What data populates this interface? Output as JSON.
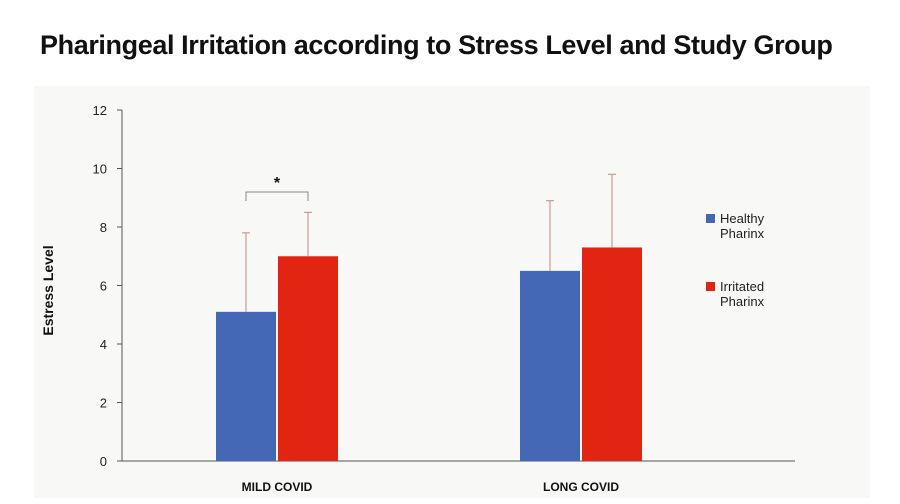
{
  "chart_data": {
    "type": "bar",
    "title": "Pharingeal Irritation according to Stress Level and Study Group",
    "xlabel": "",
    "ylabel": "Estress Level",
    "categories": [
      "MILD COVID",
      "LONG COVID"
    ],
    "series": [
      {
        "name": "Healthy Pharinx",
        "name_lines": [
          "Healthy",
          "Pharinx"
        ],
        "color": "#4468b5",
        "values": [
          5.1,
          6.5
        ],
        "error": [
          2.7,
          2.4
        ]
      },
      {
        "name": "Irritated Pharinx",
        "name_lines": [
          "Irritated",
          "Pharinx"
        ],
        "color": "#e22412",
        "values": [
          7.0,
          7.3
        ],
        "error": [
          1.5,
          2.5
        ]
      }
    ],
    "ylim": [
      0,
      12
    ],
    "yticks": [
      0,
      2,
      4,
      6,
      8,
      10,
      12
    ],
    "grid": false,
    "legend_position": "right",
    "annotations": [
      {
        "text": "*",
        "type": "significance-bracket",
        "category": "MILD COVID"
      }
    ],
    "error_bar_color": "#c99a94"
  }
}
